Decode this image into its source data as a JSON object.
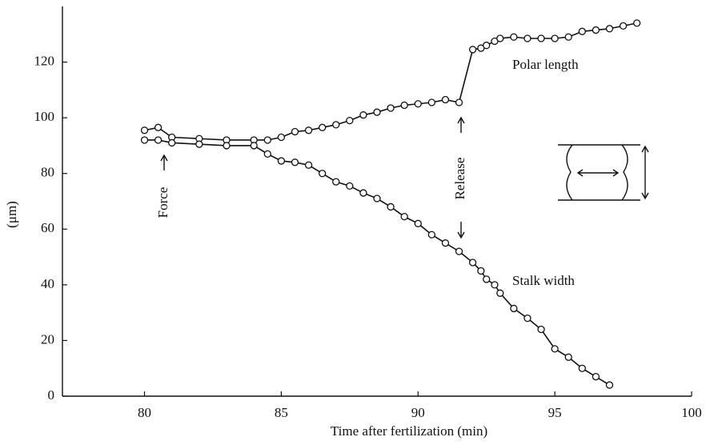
{
  "chart_data": {
    "type": "line",
    "xlabel": "Time after fertilization (min)",
    "ylabel": "(μm)",
    "xlim": [
      77,
      100
    ],
    "xticks": [
      80,
      85,
      90,
      95,
      100
    ],
    "ylim": [
      0,
      140
    ],
    "yticks": [
      0,
      20,
      40,
      60,
      80,
      100,
      120
    ],
    "color": "#111111",
    "series": [
      {
        "name": "Polar length",
        "x": [
          80,
          80.5,
          81,
          82,
          83,
          84,
          84.5,
          85,
          85.5,
          86,
          86.5,
          87,
          87.5,
          88,
          88.5,
          89,
          89.5,
          90,
          90.5,
          91,
          91.5,
          92,
          92.3,
          92.5,
          92.8,
          93,
          93.5,
          94,
          94.5,
          95,
          95.5,
          96,
          96.5,
          97,
          97.5,
          98
        ],
        "values": [
          95.5,
          96.5,
          93,
          92.5,
          92,
          92,
          92,
          93,
          95,
          95.5,
          96.5,
          97.5,
          99,
          101,
          102,
          103.5,
          104.5,
          105,
          105.5,
          106.5,
          105.5,
          124.5,
          125,
          126,
          127.5,
          128.5,
          129,
          128.5,
          128.5,
          128.5,
          129,
          131,
          131.5,
          132,
          133,
          134
        ]
      },
      {
        "name": "Stalk width",
        "x": [
          80,
          80.5,
          81,
          82,
          83,
          84,
          84.5,
          85,
          85.5,
          86,
          86.5,
          87,
          87.5,
          88,
          88.5,
          89,
          89.5,
          90,
          90.5,
          91,
          91.5,
          92,
          92.3,
          92.5,
          92.8,
          93,
          93.5,
          94,
          94.5,
          95,
          95.5,
          96,
          96.5,
          97
        ],
        "values": [
          92,
          92,
          91,
          90.5,
          90,
          90,
          87,
          84.5,
          84,
          83,
          80,
          77,
          75.5,
          73,
          71,
          68,
          64.5,
          62,
          58,
          55,
          52,
          48,
          45,
          42,
          40,
          37,
          31.5,
          28,
          24,
          17,
          14,
          10,
          7,
          4
        ]
      }
    ],
    "annotations": [
      "Force",
      "Release"
    ]
  }
}
